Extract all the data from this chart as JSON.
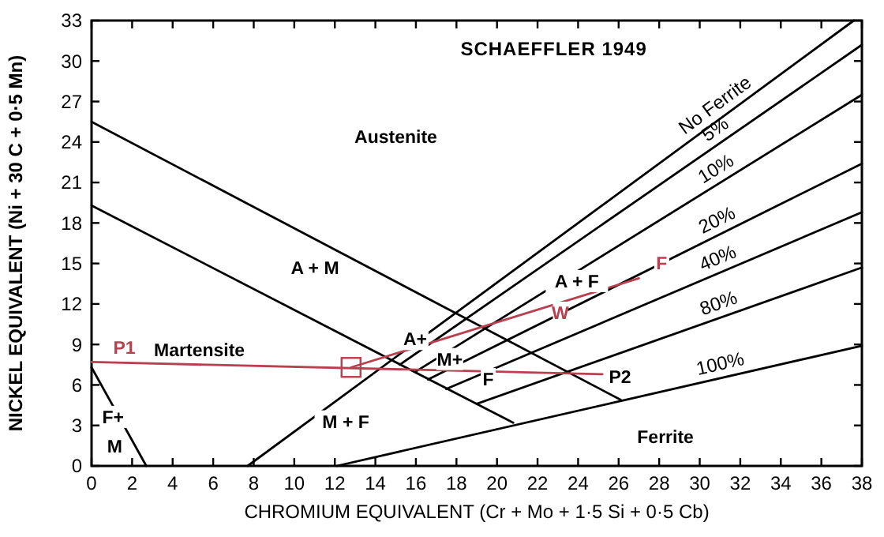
{
  "chart_data": {
    "type": "line",
    "title": "SCHAEFFLER 1949",
    "xlabel": "CHROMIUM EQUIVALENT  (Cr + Mo + 1·5 Si + 0·5 Cb)",
    "ylabel": "NICKEL EQUIVALENT  (Ni + 30 C + 0·5 Mn)",
    "xlim": [
      0,
      38
    ],
    "ylim": [
      0,
      33
    ],
    "xticks": [
      0,
      2,
      4,
      6,
      8,
      10,
      12,
      14,
      16,
      18,
      20,
      22,
      24,
      26,
      28,
      30,
      32,
      34,
      36,
      38
    ],
    "yticks": [
      0,
      3,
      6,
      9,
      12,
      15,
      18,
      21,
      24,
      27,
      30,
      33
    ],
    "grid": false,
    "marker": "none",
    "line_style": "solid",
    "series": [
      {
        "color": "#000000",
        "x": [
          0,
          26.1
        ],
        "values": [
          25.5,
          4.9
        ]
      },
      {
        "color": "#000000",
        "x": [
          0,
          20.8
        ],
        "values": [
          19.3,
          3.2
        ]
      },
      {
        "color": "#000000",
        "x": [
          0,
          2.7
        ],
        "values": [
          7.3,
          0
        ]
      },
      {
        "name": "No Ferrite",
        "color": "#000000",
        "x": [
          7.7,
          37.6
        ],
        "values": [
          0,
          33
        ]
      },
      {
        "name": "5%",
        "color": "#000000",
        "x": [
          15.2,
          38
        ],
        "values": [
          7.5,
          31.2
        ]
      },
      {
        "name": "10%",
        "color": "#000000",
        "x": [
          16,
          38
        ],
        "values": [
          7,
          27.5
        ]
      },
      {
        "name": "20%",
        "color": "#000000",
        "x": [
          16.6,
          38
        ],
        "values": [
          6.4,
          22.4
        ]
      },
      {
        "name": "40%",
        "color": "#000000",
        "x": [
          17.5,
          38
        ],
        "values": [
          5.7,
          18.8
        ]
      },
      {
        "name": "80%",
        "color": "#000000",
        "x": [
          19,
          38
        ],
        "values": [
          4.6,
          14.7
        ]
      },
      {
        "name": "100%",
        "color": "#000000",
        "x": [
          12.1,
          38
        ],
        "values": [
          0,
          8.9
        ]
      },
      {
        "color": "#b8404f",
        "x": [
          0,
          25.2
        ],
        "values": [
          7.7,
          6.8
        ]
      },
      {
        "color": "#b8404f",
        "x": [
          12.8,
          27
        ],
        "values": [
          7.3,
          13.9
        ]
      },
      {
        "type": "scatter",
        "marker": "square",
        "color": "#b8404f",
        "x": [
          12.8
        ],
        "values": [
          7.3
        ]
      }
    ],
    "annotations": [
      "Austenite",
      "A + M",
      "Martensite",
      "F+",
      "M",
      "M + F",
      "A + F",
      "A+",
      "M+",
      "F",
      "Ferrite",
      {
        "text": "P1",
        "x": 0.8,
        "y": 7.7
      },
      "P2",
      {
        "text": "W",
        "x": 22.6,
        "y": 10.3
      },
      {
        "text": "F",
        "x": 27.6,
        "y": 14.0
      }
    ]
  }
}
